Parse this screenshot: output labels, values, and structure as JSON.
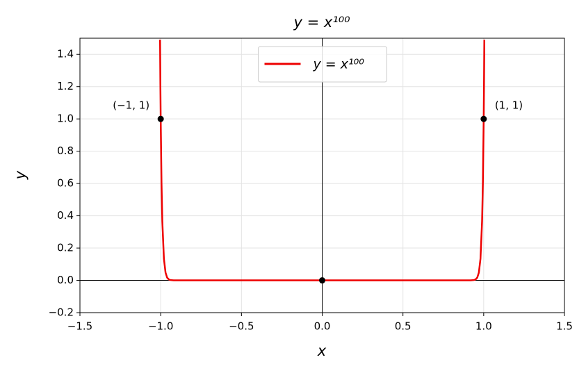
{
  "chart_data": {
    "type": "line",
    "title": "y = x¹⁰⁰",
    "x_label": "x",
    "y_label": "y",
    "x": [
      -1.004,
      -1.002,
      -1.0,
      -0.995,
      -0.99,
      -0.98,
      -0.97,
      -0.96,
      -0.95,
      -0.94,
      -0.92,
      -0.9,
      -0.8,
      0,
      0.8,
      0.9,
      0.92,
      0.94,
      0.95,
      0.96,
      0.97,
      0.98,
      0.99,
      0.995,
      1.0,
      1.002,
      1.004
    ],
    "series": [
      {
        "name": "y = x¹⁰⁰",
        "color": "#ee0000",
        "values": [
          1.491,
          1.221,
          1,
          0.606,
          0.366,
          0.133,
          0.048,
          0.017,
          0.006,
          0.002,
          0.0002,
          0,
          0,
          0,
          0,
          0,
          0.0002,
          0.002,
          0.006,
          0.017,
          0.048,
          0.133,
          0.366,
          0.606,
          1,
          1.221,
          1.491
        ]
      }
    ],
    "points": {
      "x": [
        -1,
        0,
        1
      ],
      "values": [
        1,
        0,
        1
      ],
      "color": "#000000"
    },
    "annotations": [
      {
        "text": "(−1, 1)",
        "x": -1,
        "y": 1
      },
      {
        "text": "(1, 1)",
        "x": 1,
        "y": 1
      }
    ],
    "xlim": [
      -1.5,
      1.5
    ],
    "xticks": [
      {
        "value": -1.5,
        "label": "−1.5"
      },
      {
        "value": -1.0,
        "label": "−1.0"
      },
      {
        "value": -0.5,
        "label": "−0.5"
      },
      {
        "value": 0,
        "label": "0.0"
      },
      0.5,
      {
        "value": 1,
        "label": "1.0"
      },
      1.5
    ],
    "ylim": [
      -0.2,
      1.5
    ],
    "yticks": [
      {
        "value": -0.2,
        "label": "−0.2"
      },
      {
        "value": 0,
        "label": "0.0"
      },
      0.2,
      0.4,
      0.6,
      0.8,
      {
        "value": 1,
        "label": "1.0"
      },
      1.2,
      1.4
    ],
    "grid": true,
    "legend": "upper center"
  }
}
